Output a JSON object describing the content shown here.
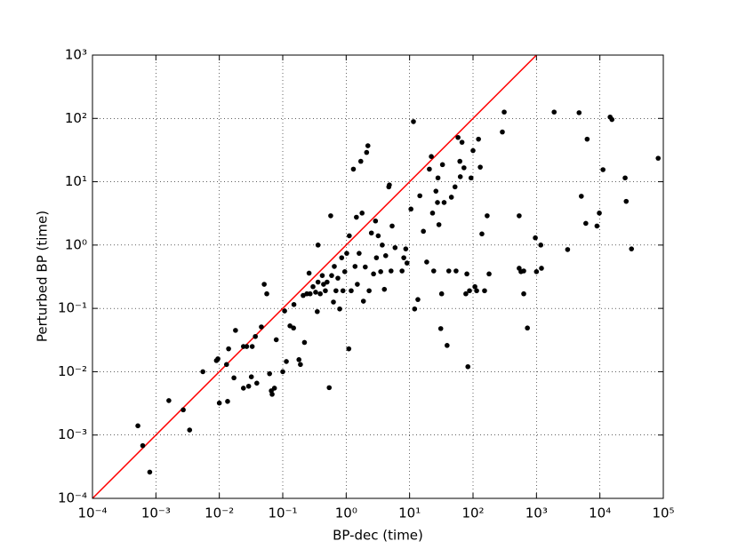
{
  "chart_data": {
    "type": "scatter",
    "xlabel": "BP-dec (time)",
    "ylabel": "Perturbed BP (time)",
    "log_x": true,
    "log_y": true,
    "grid": true,
    "color": "#000000",
    "diagonal": true,
    "diagonal_color": "#ff0000",
    "xlim": [
      0.0001,
      100000
    ],
    "ylim": [
      0.0001,
      1000
    ],
    "xticks": [
      {
        "value": 0.0001,
        "label": "10⁻⁴"
      },
      {
        "value": 0.001,
        "label": "10⁻³"
      },
      {
        "value": 0.01,
        "label": "10⁻²"
      },
      {
        "value": 0.1,
        "label": "10⁻¹"
      },
      {
        "value": 1,
        "label": "10⁰"
      },
      {
        "value": 10,
        "label": "10¹"
      },
      {
        "value": 100,
        "label": "10²"
      },
      {
        "value": 1000,
        "label": "10³"
      },
      {
        "value": 10000,
        "label": "10⁴"
      },
      {
        "value": 100000,
        "label": "10⁵"
      }
    ],
    "yticks": [
      {
        "value": 0.0001,
        "label": "10⁻⁴"
      },
      {
        "value": 0.001,
        "label": "10⁻³"
      },
      {
        "value": 0.01,
        "label": "10⁻²"
      },
      {
        "value": 0.1,
        "label": "10⁻¹"
      },
      {
        "value": 1,
        "label": "10⁰"
      },
      {
        "value": 10,
        "label": "10¹"
      },
      {
        "value": 100,
        "label": "10²"
      },
      {
        "value": 1000,
        "label": "10³"
      }
    ],
    "x": [
      0.00052,
      0.00062,
      0.0008,
      0.0016,
      0.0027,
      0.0034,
      0.0055,
      0.009,
      0.0095,
      0.01,
      0.0135,
      0.013,
      0.014,
      0.017,
      0.018,
      0.024,
      0.027,
      0.024,
      0.029,
      0.032,
      0.033,
      0.037,
      0.039,
      0.046,
      0.051,
      0.056,
      0.062,
      0.066,
      0.068,
      0.074,
      0.079,
      0.1,
      0.107,
      0.114,
      0.13,
      0.148,
      0.15,
      0.18,
      0.19,
      0.21,
      0.22,
      0.24,
      0.26,
      0.27,
      0.3,
      0.33,
      0.35,
      0.36,
      0.36,
      0.39,
      0.42,
      0.44,
      0.47,
      0.5,
      0.54,
      0.57,
      0.59,
      0.63,
      0.65,
      0.69,
      0.74,
      0.79,
      0.85,
      0.89,
      0.95,
      1.02,
      1.1,
      1.12,
      1.2,
      1.3,
      1.38,
      1.45,
      1.5,
      1.6,
      1.7,
      1.78,
      1.87,
      2.0,
      2.1,
      2.2,
      2.3,
      2.5,
      2.7,
      2.9,
      3.0,
      3.2,
      3.5,
      3.7,
      4.0,
      4.2,
      4.7,
      4.8,
      5.1,
      5.3,
      5.9,
      7.6,
      8.1,
      8.7,
      9.1,
      10.5,
      11.5,
      12,
      13.5,
      14.5,
      16.5,
      18.6,
      20.5,
      22,
      23,
      24,
      26,
      27.5,
      28,
      29,
      31,
      32,
      33,
      35,
      39,
      41.5,
      45.6,
      52,
      54,
      58,
      62,
      63,
      67,
      72,
      77,
      80,
      83,
      88,
      93,
      100,
      107,
      114,
      122,
      130,
      138,
      152,
      167,
      179,
      290,
      310,
      534,
      534,
      570,
      630,
      630,
      720,
      960,
      1000,
      1170,
      1200,
      3100,
      4700,
      1900,
      5100,
      6000,
      6300,
      9000,
      9800,
      11200,
      14500,
      15500,
      25000,
      26000,
      31500,
      83000
    ],
    "values": [
      0.0014,
      0.00068,
      0.00026,
      0.0035,
      0.0025,
      0.0012,
      0.01,
      0.015,
      0.016,
      0.0032,
      0.0034,
      0.013,
      0.023,
      0.008,
      0.045,
      0.025,
      0.025,
      0.0055,
      0.0059,
      0.0083,
      0.025,
      0.036,
      0.0066,
      0.051,
      0.24,
      0.17,
      0.0093,
      0.005,
      0.0044,
      0.0055,
      0.032,
      0.01,
      0.091,
      0.0145,
      0.053,
      0.049,
      0.115,
      0.0155,
      0.013,
      0.16,
      0.029,
      0.17,
      0.36,
      0.17,
      0.22,
      0.18,
      0.089,
      1.0,
      0.26,
      0.17,
      0.33,
      0.24,
      0.19,
      0.26,
      0.0056,
      2.9,
      0.33,
      0.126,
      0.46,
      0.19,
      0.3,
      0.098,
      0.63,
      0.19,
      0.38,
      0.74,
      0.023,
      1.4,
      0.19,
      15.8,
      0.46,
      2.75,
      0.24,
      0.74,
      21,
      3.2,
      0.13,
      0.45,
      29,
      37,
      0.19,
      1.55,
      0.35,
      2.4,
      0.63,
      1.4,
      0.38,
      1.0,
      0.2,
      0.68,
      8.3,
      8.9,
      0.39,
      2.0,
      0.91,
      0.39,
      0.63,
      0.87,
      0.52,
      3.7,
      89,
      0.098,
      0.138,
      6.0,
      1.65,
      0.54,
      15.8,
      25,
      3.2,
      0.39,
      7.1,
      4.7,
      11.5,
      2.1,
      0.048,
      0.17,
      18.6,
      4.7,
      0.026,
      0.39,
      5.7,
      8.3,
      0.39,
      50,
      21,
      12,
      42,
      16.6,
      0.17,
      0.35,
      0.012,
      0.19,
      11.5,
      31,
      0.22,
      0.19,
      47,
      17,
      1.5,
      0.19,
      2.9,
      0.35,
      61,
      126,
      2.9,
      0.43,
      0.38,
      0.17,
      0.39,
      0.049,
      1.3,
      0.38,
      1.0,
      0.43,
      0.85,
      123,
      126,
      5.9,
      2.2,
      47,
      2.0,
      3.2,
      15.5,
      105,
      96,
      11.5,
      4.9,
      0.87,
      23.5
    ]
  }
}
